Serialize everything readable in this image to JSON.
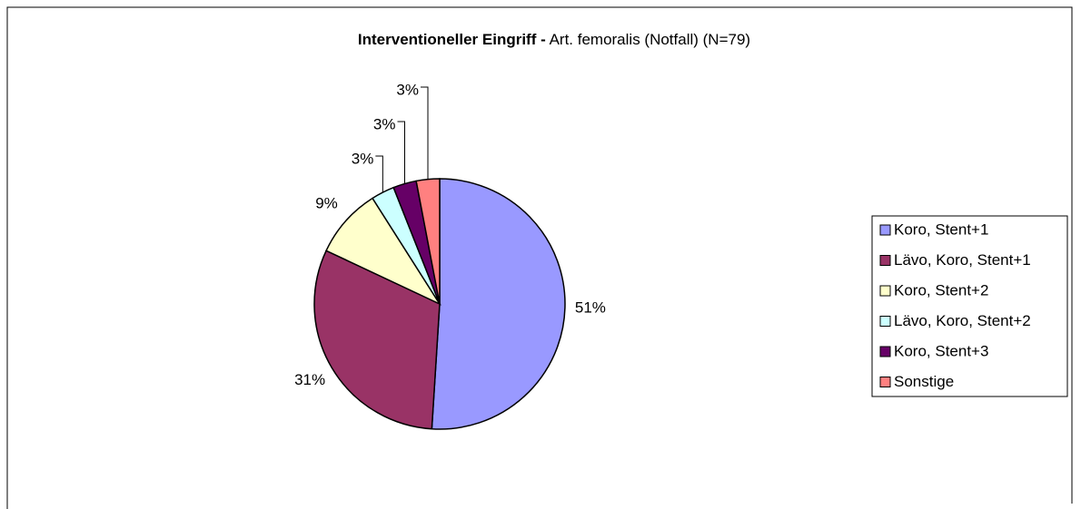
{
  "chart_data": {
    "type": "pie",
    "title": "Interventioneller Eingriff -",
    "subtitle": "Art. femoralis (Notfall) (N=79)",
    "categories": [
      "Koro, Stent+1",
      "Lävo, Koro, Stent+1",
      "Koro, Stent+2",
      "Lävo, Koro, Stent+2",
      "Koro, Stent+3",
      "Sonstige"
    ],
    "values": [
      51,
      31,
      9,
      3,
      3,
      3
    ],
    "value_labels": [
      "51%",
      "31%",
      "9%",
      "3%",
      "3%",
      "3%"
    ],
    "colors": [
      "#9999ff",
      "#993366",
      "#ffffcc",
      "#ccffff",
      "#660066",
      "#ff8080"
    ],
    "legend": "right"
  }
}
